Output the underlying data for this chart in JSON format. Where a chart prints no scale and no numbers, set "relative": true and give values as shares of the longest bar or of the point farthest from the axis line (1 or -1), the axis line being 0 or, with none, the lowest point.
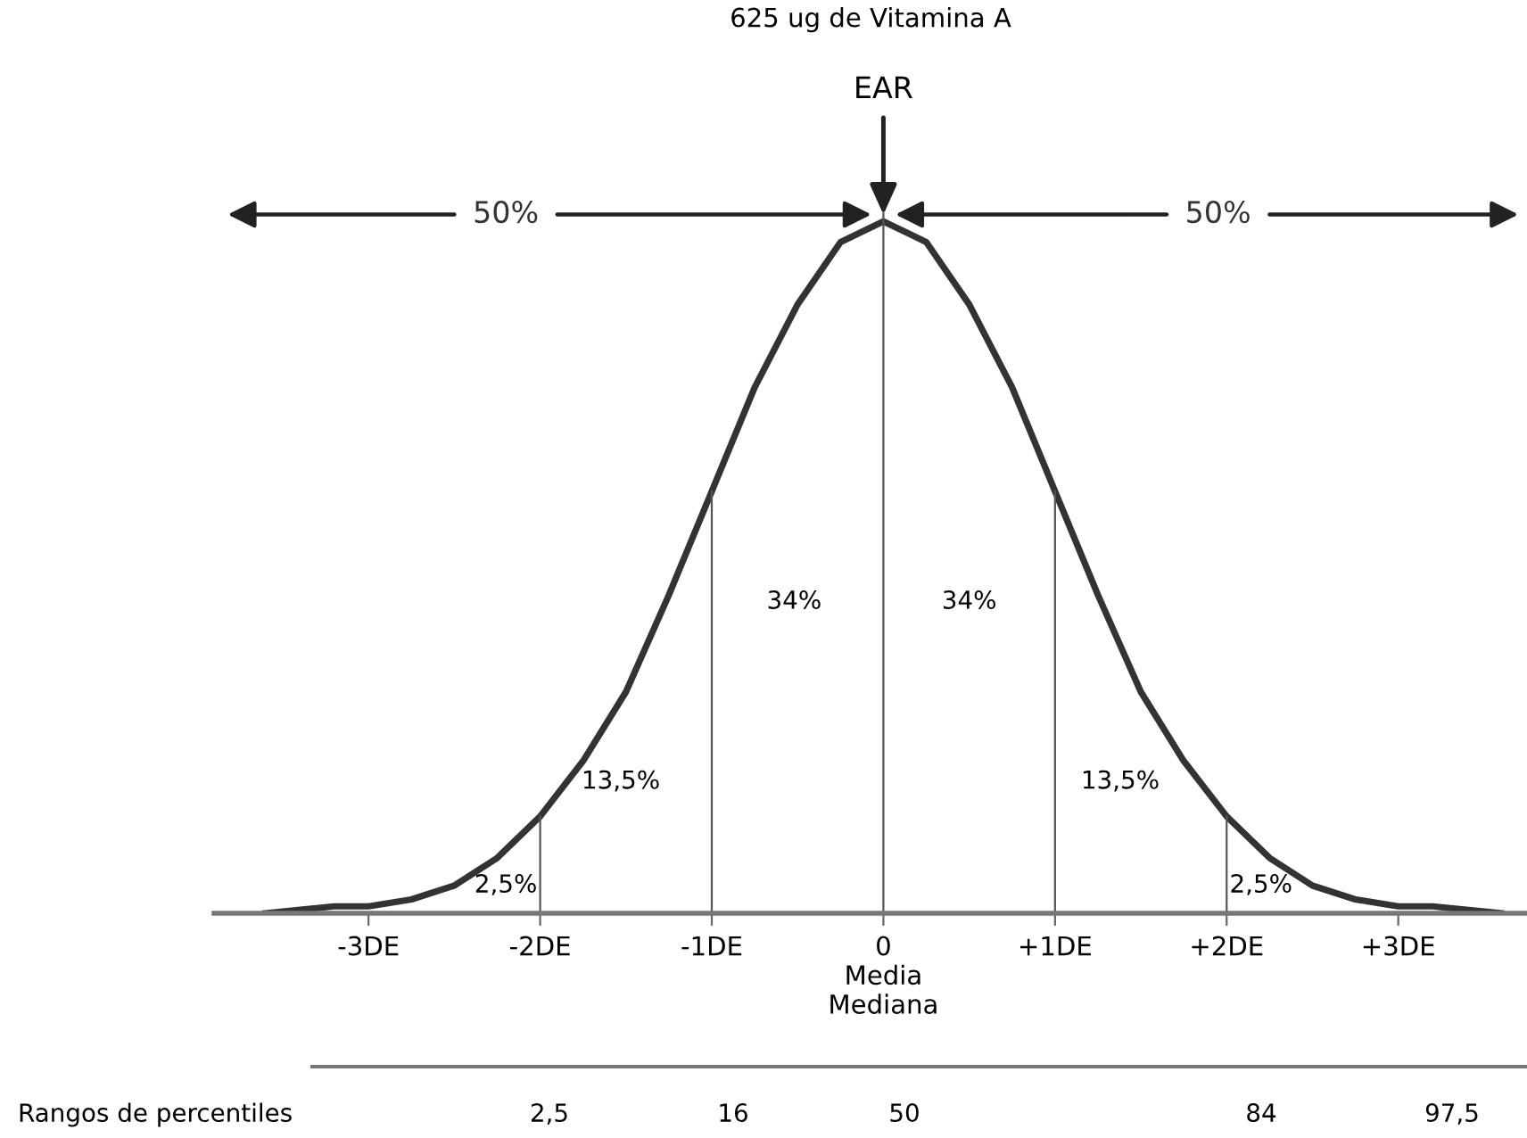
{
  "chart_data": {
    "type": "line",
    "title": "625 ug de Vitamina A",
    "relative": true,
    "x": [
      -3.6,
      -3.2,
      -3,
      -2.75,
      -2.5,
      -2.25,
      -2,
      -1.75,
      -1.5,
      -1.25,
      -1,
      -0.75,
      -0.5,
      -0.25,
      0,
      0.25,
      0.5,
      0.75,
      1,
      1.25,
      1.5,
      1.75,
      2,
      2.25,
      2.5,
      2.75,
      3,
      3.2,
      3.6
    ],
    "series": [
      {
        "color": "#333333",
        "values": [
          0,
          0.01,
          0.01,
          0.02,
          0.04,
          0.08,
          0.14,
          0.22,
          0.32,
          0.46,
          0.61,
          0.76,
          0.88,
          0.97,
          1,
          0.97,
          0.88,
          0.76,
          0.61,
          0.46,
          0.32,
          0.22,
          0.14,
          0.08,
          0.04,
          0.02,
          0.01,
          0.01,
          0
        ]
      }
    ],
    "xlim": [
      -3.9,
      3.75
    ],
    "xticks": [
      {
        "value": -3,
        "label": "-3DE"
      },
      {
        "value": -2,
        "label": "-2DE"
      },
      {
        "value": -1,
        "label": "-1DE"
      },
      {
        "value": 0,
        "label": "0\nMedia\nMediana"
      },
      {
        "value": 1,
        "label": "+1DE"
      },
      {
        "value": 2,
        "label": "+2DE"
      },
      {
        "value": 3,
        "label": "+3DE"
      }
    ],
    "ref_lines": [
      {
        "axis": "x",
        "value": -2
      },
      {
        "axis": "x",
        "value": -1
      },
      {
        "axis": "x",
        "value": 0
      },
      {
        "axis": "x",
        "value": 1
      },
      {
        "axis": "x",
        "value": 2
      }
    ],
    "annotations": [
      "EAR",
      "50%",
      "50%",
      "34%",
      "34%",
      "13,5%",
      "13,5%",
      "2,5%",
      "2,5%",
      "Rangos de percentiles",
      "2,5",
      "16",
      "50",
      "84",
      "97,5"
    ],
    "grid": false,
    "legend": false,
    "marker": "none",
    "line_style": "solid"
  }
}
